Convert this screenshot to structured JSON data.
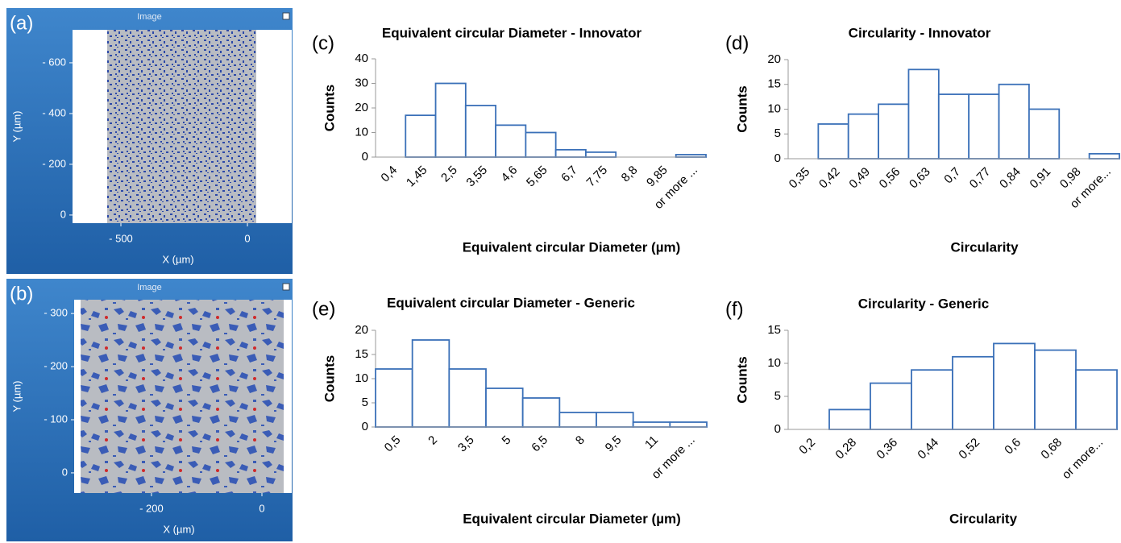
{
  "chart_data": [
    {
      "type": "image",
      "panel_label": "(a)",
      "title": "Image",
      "xlabel": "X (µm)",
      "ylabel": "Y (µm)",
      "xlim": [
        -691,
        175
      ],
      "ylim": [
        32,
        -730
      ],
      "xticks": [
        {
          "value": -500,
          "label": "- 500"
        },
        0
      ],
      "yticks": [
        {
          "value": -600,
          "label": "- 600"
        },
        {
          "value": -400,
          "label": "- 400"
        },
        {
          "value": -200,
          "label": "- 200"
        },
        0
      ]
    },
    {
      "type": "bar",
      "panel_label": "(c)",
      "title": "Equivalent circular Diameter - Innovator",
      "xlabel": "Equivalent circular Diameter (µm)",
      "ylabel": "Counts",
      "categories": [
        "0,4",
        "1,45",
        "2,5",
        "3,55",
        "4,6",
        "5,65",
        "6,7",
        "7,75",
        "8,8",
        "9,85",
        "or more ..."
      ],
      "values": [
        0,
        17,
        30,
        21,
        13,
        10,
        3,
        2,
        0,
        0,
        1
      ],
      "color": "#3a70b8",
      "ylim": [
        0,
        40
      ],
      "yticks": [
        0,
        10,
        20,
        30,
        40
      ]
    },
    {
      "type": "bar",
      "panel_label": "(d)",
      "title": "Circularity - Innovator",
      "xlabel": "Circularity",
      "ylabel": "Counts",
      "categories": [
        "0,35",
        "0,42",
        "0,49",
        "0,56",
        "0,63",
        "0,7",
        "0,77",
        "0,84",
        "0,91",
        "0,98",
        "or more..."
      ],
      "values": [
        0,
        7,
        9,
        11,
        18,
        13,
        13,
        15,
        10,
        0,
        1
      ],
      "color": "#3a70b8",
      "ylim": [
        0,
        20
      ],
      "yticks": [
        0,
        5,
        10,
        15,
        20
      ]
    },
    {
      "type": "image",
      "panel_label": "(b)",
      "title": "Image",
      "xlabel": "X (µm)",
      "ylabel": "Y (µm)",
      "xlim": [
        -340,
        54
      ],
      "ylim": [
        38,
        -326
      ],
      "xticks": [
        {
          "value": -200,
          "label": "- 200"
        },
        0
      ],
      "yticks": [
        {
          "value": -300,
          "label": "- 300"
        },
        {
          "value": -200,
          "label": "- 200"
        },
        {
          "value": -100,
          "label": "- 100"
        },
        0
      ]
    },
    {
      "type": "bar",
      "panel_label": "(e)",
      "title": "Equivalent circular Diameter - Generic",
      "xlabel": "Equivalent circular Diameter (µm)",
      "ylabel": "Counts",
      "categories": [
        "0,5",
        "2",
        "3,5",
        "5",
        "6,5",
        "8",
        "9,5",
        "11",
        "or more ..."
      ],
      "values": [
        12,
        18,
        12,
        8,
        6,
        3,
        3,
        1,
        1
      ],
      "color": "#3a70b8",
      "ylim": [
        0,
        20
      ],
      "yticks": [
        0,
        5,
        10,
        15,
        20
      ]
    },
    {
      "type": "bar",
      "panel_label": "(f)",
      "title": "Circularity - Generic",
      "xlabel": "Circularity",
      "ylabel": "Counts",
      "categories": [
        "0,2",
        "0,28",
        "0,36",
        "0,44",
        "0,52",
        "0,6",
        "0,68",
        "or more..."
      ],
      "values": [
        0,
        3,
        7,
        9,
        11,
        13,
        12,
        9
      ],
      "color": "#3a70b8",
      "ylim": [
        0,
        15
      ],
      "yticks": [
        0,
        5,
        10,
        15
      ]
    }
  ]
}
